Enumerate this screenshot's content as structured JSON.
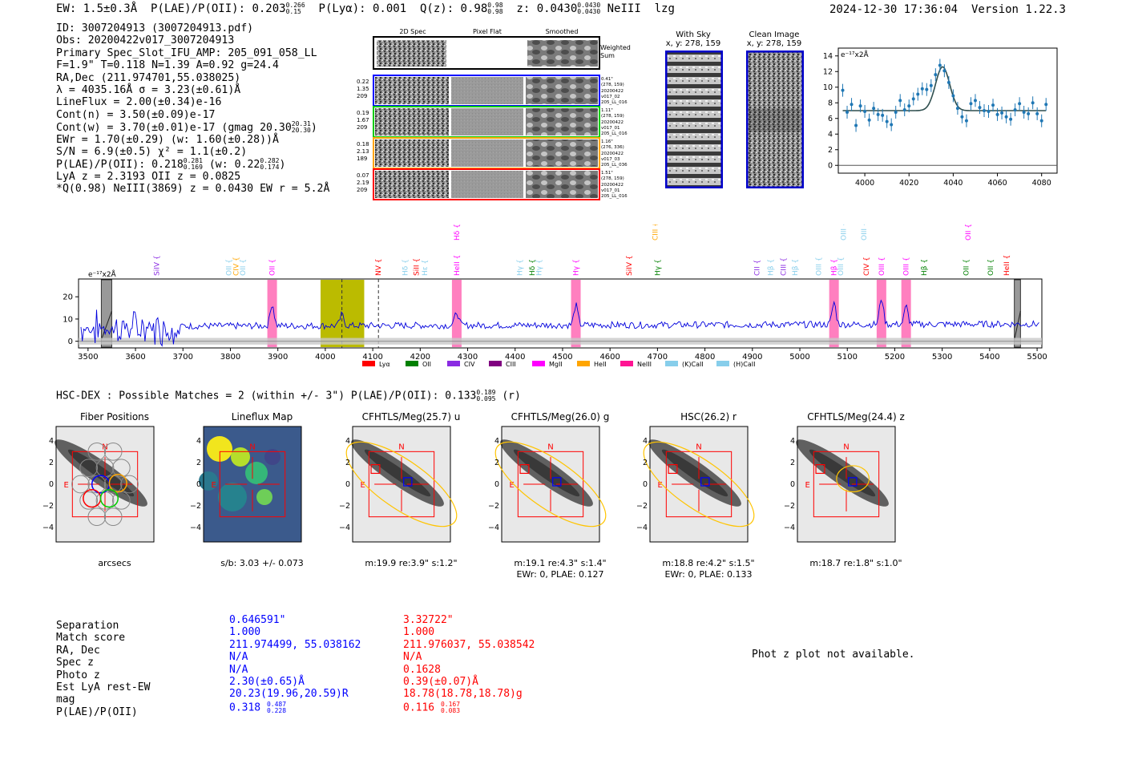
{
  "header": {
    "ew": "EW: 1.5±0.3Å",
    "plae_label": "P(LAE)/P(OII): 0.203",
    "plae_hi": "0.266",
    "plae_lo": "0.15",
    "plya": "P(Lyα): 0.001",
    "qz_label": "Q(z): 0.98",
    "qz_hi": "0.98",
    "qz_lo": "0.98",
    "z_label": "z: 0.0430",
    "z_hi": "0.0430",
    "z_lo": "0.0430",
    "line": "NeIII",
    "flag": "lzg",
    "timestamp": "2024-12-30 17:36:04",
    "version": "Version 1.22.3"
  },
  "info": {
    "id": "ID: 3007204913 (3007204913.pdf)",
    "obs": "Obs: 20200422v017_3007204913",
    "primary": "Primary Spec_Slot_IFU_AMP: 205_091_058_LL",
    "f": "F=1.9\"  T=0.118  N=1.39  A=0.92  g=24.4",
    "radec": "RA,Dec (211.974701,55.038025)",
    "lambda": "λ = 4035.16Å  σ = 3.23(±0.61)Å",
    "lineflux": "LineFlux = 2.00(±0.34)e-16",
    "contn": "Cont(n) = 3.50(±0.09)e-17",
    "contw": "Cont(w) = 3.70(±0.01)e-17 (gmag 20.30",
    "contw_hi": "20.31",
    "contw_lo": "20.30",
    "ewr": "EWr = 1.70(±0.29) (w: 1.60(±0.28))Å",
    "sn": "S/N = 6.9(±0.5)  χ² = 1.1(±0.2)",
    "plae": "P(LAE)/P(OII): 0.218",
    "plae_hi": "0.281",
    "plae_lo": "0.169",
    "plae_w": "(w: 0.22",
    "plae_w_hi": "0.282",
    "plae_w_lo": "0.174",
    "lya": "LyA z = 2.3193  OII z = 0.0825",
    "q": "*Q(0.98) NeIII(3869) z = 0.0430  EW r = 5.2Å"
  },
  "fiber_panel": {
    "col_2d": "2D Spec",
    "col_flat": "Pixel Flat",
    "col_smooth": "Smoothed",
    "weighted": "Weighted",
    "sum": "Sum",
    "rows": [
      {
        "l1": "0.22",
        "l2": "1.35",
        "l3": "209",
        "r1": "0.41\"",
        "r2": "(278, 159)",
        "r3": "20200422",
        "r4": "v017_02",
        "r5": "205_LL_016",
        "color": "#0000ff"
      },
      {
        "l1": "0.19",
        "l2": "1.67",
        "l3": "209",
        "r1": "1.11\"",
        "r2": "(278, 159)",
        "r3": "20200422",
        "r4": "v017_01",
        "r5": "205_LL_016",
        "color": "#00cc00"
      },
      {
        "l1": "0.18",
        "l2": "2.13",
        "l3": "189",
        "r1": "1.16\"",
        "r2": "(276, 336)",
        "r3": "20200422",
        "r4": "v017_03",
        "r5": "205_LL_036",
        "color": "#ffa500"
      },
      {
        "l1": "0.07",
        "l2": "2.19",
        "l3": "209",
        "r1": "1.51\"",
        "r2": "(278, 159)",
        "r3": "20200422",
        "r4": "v017_01",
        "r5": "205_LL_016",
        "color": "#ff0000"
      }
    ]
  },
  "sky": {
    "with_sky": "With Sky",
    "with_sky_xy": "x, y: 278, 159",
    "clean": "Clean Image",
    "clean_xy": "x, y: 278, 159"
  },
  "chart_data": [
    {
      "type": "scatter",
      "title": "",
      "ylabel": "e⁻¹⁷x2Å",
      "xlim": [
        3988,
        4087
      ],
      "ylim": [
        -1,
        15
      ],
      "xticks": [
        "4000",
        "4020",
        "4040",
        "4060",
        "4080"
      ],
      "yticks": [
        "0",
        "2",
        "4",
        "6",
        "8",
        "10",
        "12",
        "14"
      ],
      "fit": {
        "continuum": 7.0,
        "center": 4035.2,
        "sigma": 3.2,
        "amp": 5.6
      },
      "x": [
        3990,
        3992,
        3994,
        3996,
        3998,
        4000,
        4002,
        4004,
        4006,
        4008,
        4010,
        4012,
        4014,
        4016,
        4018,
        4020,
        4022,
        4024,
        4026,
        4028,
        4030,
        4032,
        4034,
        4036,
        4038,
        4040,
        4042,
        4044,
        4046,
        4048,
        4050,
        4052,
        4054,
        4056,
        4058,
        4060,
        4062,
        4064,
        4066,
        4068,
        4070,
        4072,
        4074,
        4076,
        4078,
        4080,
        4082
      ],
      "values": [
        9.6,
        6.8,
        7.8,
        5.1,
        7.6,
        6.9,
        5.8,
        7.3,
        6.5,
        6.4,
        5.6,
        5.2,
        6.8,
        8.3,
        7.1,
        7.6,
        8.5,
        9.1,
        9.8,
        9.7,
        10.2,
        11.6,
        12.8,
        12.1,
        10.6,
        8.9,
        7.3,
        6.2,
        5.7,
        7.9,
        8.3,
        7.4,
        7.0,
        6.9,
        7.7,
        6.5,
        6.7,
        6.2,
        5.9,
        7.1,
        7.9,
        6.8,
        6.6,
        8.0,
        6.6,
        5.7,
        7.8
      ]
    },
    {
      "type": "line",
      "title": "",
      "ylabel": "e⁻¹⁷x2Å",
      "xlim": [
        3480,
        5510
      ],
      "ylim": [
        -3,
        28
      ],
      "xticks": [
        "3500",
        "3600",
        "3700",
        "3800",
        "3900",
        "4000",
        "4100",
        "4200",
        "4300",
        "4400",
        "4500",
        "4600",
        "4700",
        "4800",
        "4900",
        "5000",
        "5100",
        "5200",
        "5300",
        "5400",
        "5500"
      ],
      "yticks": [
        "0",
        "10",
        "20"
      ],
      "legend": [
        "Lyα",
        "OII",
        "CIV",
        "CIII",
        "MgII",
        "HeII",
        "NeIII",
        "(K)CaII",
        "(H)CaII"
      ],
      "legend_colors": [
        "#ff0000",
        "#008000",
        "#8a2be2",
        "#800080",
        "#ff00ff",
        "#ffa500",
        "#ff1493",
        "#87ceeb",
        "#87ceeb"
      ],
      "emission_peaks": [
        {
          "wave": 3888,
          "amp": 10
        },
        {
          "wave": 4035,
          "amp": 5
        },
        {
          "wave": 4277,
          "amp": 6
        },
        {
          "wave": 4528,
          "amp": 9
        },
        {
          "wave": 5072,
          "amp": 10
        },
        {
          "wave": 5172,
          "amp": 12
        },
        {
          "wave": 5224,
          "amp": 8
        }
      ],
      "line_ids": [
        {
          "label": "SiIV",
          "wave": 3645,
          "color": "#8a2be2",
          "tier": 1
        },
        {
          "label": "OII",
          "wave": 3797,
          "color": "#87ceeb",
          "tier": 1
        },
        {
          "label": "CIV",
          "wave": 3812,
          "color": "#ffa500",
          "tier": 1
        },
        {
          "label": "OII",
          "wave": 3826,
          "color": "#87ceeb",
          "tier": 1
        },
        {
          "label": "OII",
          "wave": 3888,
          "color": "#ff00ff",
          "tier": 1
        },
        {
          "label": "NV",
          "wave": 4112,
          "color": "#ff0000",
          "tier": 1
        },
        {
          "label": "Hδ",
          "wave": 4168,
          "color": "#87ceeb",
          "tier": 1
        },
        {
          "label": "SiII",
          "wave": 4192,
          "color": "#ff0000",
          "tier": 1
        },
        {
          "label": "Hε",
          "wave": 4210,
          "color": "#87ceeb",
          "tier": 1
        },
        {
          "label": "Hδ",
          "wave": 4277,
          "color": "#ff00ff",
          "tier": 0
        },
        {
          "label": "HeII",
          "wave": 4277,
          "color": "#ff00ff",
          "tier": 1
        },
        {
          "label": "Hγ",
          "wave": 4410,
          "color": "#87ceeb",
          "tier": 1
        },
        {
          "label": "Hδ",
          "wave": 4436,
          "color": "#008000",
          "tier": 1
        },
        {
          "label": "Hγ",
          "wave": 4450,
          "color": "#87ceeb",
          "tier": 1
        },
        {
          "label": "Hγ",
          "wave": 4528,
          "color": "#ff00ff",
          "tier": 1
        },
        {
          "label": "SiIV",
          "wave": 4640,
          "color": "#ff0000",
          "tier": 1
        },
        {
          "label": "CIII",
          "wave": 4695,
          "color": "#ffa500",
          "tier": 0
        },
        {
          "label": "Hγ",
          "wave": 4700,
          "color": "#008000",
          "tier": 1
        },
        {
          "label": "CII",
          "wave": 4910,
          "color": "#8a2be2",
          "tier": 1
        },
        {
          "label": "Hβ",
          "wave": 4938,
          "color": "#87ceeb",
          "tier": 1
        },
        {
          "label": "CIII",
          "wave": 4965,
          "color": "#8a2be2",
          "tier": 1
        },
        {
          "label": "Hβ",
          "wave": 4990,
          "color": "#87ceeb",
          "tier": 1
        },
        {
          "label": "OIII",
          "wave": 5040,
          "color": "#87ceeb",
          "tier": 1
        },
        {
          "label": "Hβ",
          "wave": 5072,
          "color": "#ff00ff",
          "tier": 1
        },
        {
          "label": "OIII",
          "wave": 5092,
          "color": "#87ceeb",
          "tier": 0
        },
        {
          "label": "OIII",
          "wave": 5086,
          "color": "#87ceeb",
          "tier": 1
        },
        {
          "label": "OIII",
          "wave": 5135,
          "color": "#87ceeb",
          "tier": 0
        },
        {
          "label": "CIV",
          "wave": 5140,
          "color": "#ff0000",
          "tier": 1
        },
        {
          "label": "OIII",
          "wave": 5172,
          "color": "#ff00ff",
          "tier": 1
        },
        {
          "label": "OIII",
          "wave": 5224,
          "color": "#ff00ff",
          "tier": 1
        },
        {
          "label": "Hβ",
          "wave": 5262,
          "color": "#008000",
          "tier": 1
        },
        {
          "label": "OII",
          "wave": 5350,
          "color": "#008000",
          "tier": 1
        },
        {
          "label": "OII",
          "wave": 5355,
          "color": "#ff00ff",
          "tier": 0
        },
        {
          "label": "OII",
          "wave": 5402,
          "color": "#008000",
          "tier": 1
        },
        {
          "label": "HeII",
          "wave": 5436,
          "color": "#ff0000",
          "tier": 1
        }
      ]
    }
  ],
  "hsc": {
    "title": "HSC-DEX : Possible Matches = 2 (within +/- 3\")  P(LAE)/P(OII): 0.133",
    "hi": "0.189",
    "lo": "0.095",
    "band": "(r)",
    "cutouts": [
      {
        "title": "Fiber Positions",
        "cap1": "arcsecs",
        "cap2": ""
      },
      {
        "title": "Lineflux Map",
        "cap1": "s/b: 3.03 +/- 0.073",
        "cap2": ""
      },
      {
        "title": "CFHTLS/Meg(25.7) u",
        "cap1": "m:19.9  re:3.9\"  s:1.2\"",
        "cap2": ""
      },
      {
        "title": "CFHTLS/Meg(26.0) g",
        "cap1": "m:19.1  re:4.3\"  s:1.4\"",
        "cap2": "EWr: 0, PLAE: 0.127"
      },
      {
        "title": "HSC(26.2) r",
        "cap1": "m:18.8  re:4.2\"  s:1.5\"",
        "cap2": "EWr: 0, PLAE: 0.133"
      },
      {
        "title": "CFHTLS/Meg(24.4) z",
        "cap1": "m:18.7  re:1.8\"  s:1.0\"",
        "cap2": ""
      }
    ],
    "axis_ticks": [
      "−4",
      "−2",
      "0",
      "2",
      "4"
    ],
    "compass_n": "N",
    "compass_e": "E"
  },
  "table": {
    "labels": [
      "Separation",
      "Match score",
      "RA, Dec",
      "Spec z",
      "Photo z",
      "Est LyA rest-EW",
      "mag",
      "P(LAE)/P(OII)"
    ],
    "blue": {
      "sep": "0.646591\"",
      "score": "1.000",
      "radec": "211.974499, 55.038162",
      "specz": "N/A",
      "photoz": "N/A",
      "ew": "2.30(±0.65)Å",
      "mag": "20.23(19.96,20.59)R",
      "plae": "0.318",
      "plae_hi": "0.487",
      "plae_lo": "0.228"
    },
    "red": {
      "sep": "3.32722\"",
      "score": "1.000",
      "radec": "211.976037, 55.038542",
      "specz": "N/A",
      "photoz": "0.1628",
      "ew": "0.39(±0.07)Å",
      "mag": "18.78(18.78,18.78)g",
      "plae": "0.116",
      "plae_hi": "0.167",
      "plae_lo": "0.083"
    },
    "photz_msg": "Phot z plot not available."
  },
  "colors": {
    "blue": "#0000ff",
    "red": "#ff0000",
    "spec_line": "#0000dd",
    "zoom_point": "#1f77b4",
    "highlight": "#ff69b4",
    "olive": "#bbbb00"
  }
}
